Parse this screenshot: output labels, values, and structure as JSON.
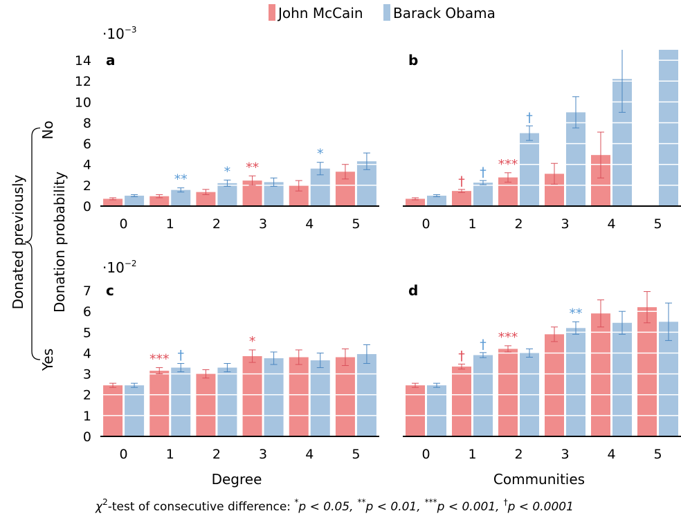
{
  "colors": {
    "mccain": "#f08c8c",
    "obama": "#a6c4e0",
    "mccain_sig": "#e0505a",
    "obama_sig": "#5b9bd5",
    "mccain_err": "#d9505a",
    "obama_err": "#4a86c0"
  },
  "legend": [
    "John McCain",
    "Barack Obama"
  ],
  "ylabel": "Donation probability",
  "group_label": "Donated previously",
  "row_labels": [
    "No",
    "Yes"
  ],
  "xlabels": [
    "Degree",
    "Communities"
  ],
  "multipliers": {
    "top": {
      "base": "·10",
      "exp": "−3"
    },
    "bottom": {
      "base": "·10",
      "exp": "−2"
    }
  },
  "footnote": {
    "lead": "χ",
    "lead_sup": "2",
    "text": "-test of consecutive difference: ",
    "items": [
      {
        "sym": "*",
        "cond": "p < 0.05,"
      },
      {
        "sym": "**",
        "cond": "p < 0.01,"
      },
      {
        "sym": "***",
        "cond": "p < 0.001,"
      },
      {
        "sym": "†",
        "cond": "p < 0.0001"
      }
    ]
  },
  "chart_data": [
    {
      "panel": "a",
      "type": "bar",
      "categories": [
        "0",
        "1",
        "2",
        "3",
        "4",
        "5"
      ],
      "ylim": [
        0,
        15
      ],
      "yticks": [
        0,
        2,
        4,
        6,
        8,
        10,
        12,
        14
      ],
      "series": [
        {
          "name": "John McCain",
          "values": [
            0.7,
            0.95,
            1.35,
            2.45,
            1.95,
            3.3
          ],
          "err": [
            0.1,
            0.15,
            0.25,
            0.45,
            0.5,
            0.7
          ],
          "sig": [
            "",
            "",
            "",
            "**",
            "",
            ""
          ]
        },
        {
          "name": "Barack Obama",
          "values": [
            1.0,
            1.55,
            2.2,
            2.3,
            3.6,
            4.3
          ],
          "err": [
            0.1,
            0.2,
            0.3,
            0.4,
            0.6,
            0.8
          ],
          "sig": [
            "",
            "**",
            "*",
            "",
            "*",
            ""
          ]
        }
      ]
    },
    {
      "panel": "b",
      "type": "bar",
      "categories": [
        "0",
        "1",
        "2",
        "3",
        "4",
        "5"
      ],
      "ylim": [
        0,
        15
      ],
      "yticks": [
        0,
        2,
        4,
        6,
        8,
        10,
        12,
        14
      ],
      "series": [
        {
          "name": "John McCain",
          "values": [
            0.7,
            1.45,
            2.75,
            3.1,
            4.9,
            0
          ],
          "err": [
            0.1,
            0.15,
            0.45,
            1.0,
            2.2,
            0
          ],
          "sig": [
            "",
            "†",
            "***",
            "",
            "",
            ""
          ]
        },
        {
          "name": "Barack Obama",
          "values": [
            1.0,
            2.25,
            7.0,
            9.0,
            12.2,
            15.0
          ],
          "err": [
            0.1,
            0.2,
            0.7,
            1.5,
            3.2,
            0
          ],
          "sig": [
            "",
            "†",
            "†",
            "",
            "",
            ""
          ]
        }
      ]
    },
    {
      "panel": "c",
      "type": "bar",
      "categories": [
        "0",
        "1",
        "2",
        "3",
        "4",
        "5"
      ],
      "ylim": [
        0,
        7.5
      ],
      "yticks": [
        0,
        1,
        2,
        3,
        4,
        5,
        6,
        7
      ],
      "series": [
        {
          "name": "John McCain",
          "values": [
            2.45,
            3.15,
            3.0,
            3.85,
            3.8,
            3.8
          ],
          "err": [
            0.1,
            0.15,
            0.2,
            0.3,
            0.35,
            0.4
          ],
          "sig": [
            "",
            "***",
            "",
            "*",
            "",
            ""
          ]
        },
        {
          "name": "Barack Obama",
          "values": [
            2.45,
            3.3,
            3.3,
            3.75,
            3.65,
            3.95
          ],
          "err": [
            0.1,
            0.2,
            0.2,
            0.3,
            0.35,
            0.45
          ],
          "sig": [
            "",
            "†",
            "",
            "",
            "",
            ""
          ]
        }
      ]
    },
    {
      "panel": "d",
      "type": "bar",
      "categories": [
        "0",
        "1",
        "2",
        "3",
        "4",
        "5"
      ],
      "ylim": [
        0,
        7.5
      ],
      "yticks": [
        0,
        1,
        2,
        3,
        4,
        5,
        6,
        7
      ],
      "series": [
        {
          "name": "John McCain",
          "values": [
            2.45,
            3.35,
            4.2,
            4.9,
            5.9,
            6.2
          ],
          "err": [
            0.1,
            0.12,
            0.15,
            0.35,
            0.65,
            0.75
          ],
          "sig": [
            "",
            "†",
            "***",
            "",
            "",
            ""
          ]
        },
        {
          "name": "Barack Obama",
          "values": [
            2.45,
            3.9,
            4.0,
            5.2,
            5.45,
            5.5
          ],
          "err": [
            0.1,
            0.12,
            0.2,
            0.3,
            0.55,
            0.9
          ],
          "sig": [
            "",
            "†",
            "",
            "**",
            "",
            ""
          ]
        }
      ]
    }
  ]
}
